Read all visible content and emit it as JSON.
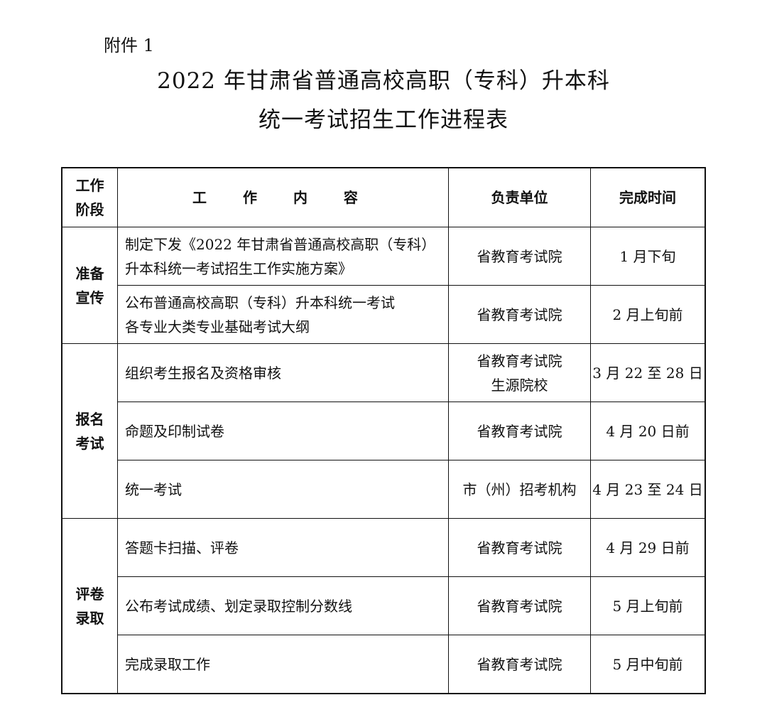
{
  "attachment_label": "附件 1",
  "title_line1": "2022 年甘肃省普通高校高职（专科）升本科",
  "title_line2": "统一考试招生工作进程表",
  "table": {
    "headers": [
      "工作阶段",
      "工 作 内 容",
      "负责单位",
      "完成时间"
    ],
    "header_stage_lines": [
      "工作",
      "阶段"
    ],
    "groups": [
      {
        "stage_lines": [
          "准备",
          "宣传"
        ],
        "rows": [
          {
            "content_lines": [
              "制定下发《2022 年甘肃省普通高校高职（专科）",
              "升本科统一考试招生工作实施方案》"
            ],
            "unit_lines": [
              "省教育考试院"
            ],
            "time": "1 月下旬"
          },
          {
            "content_lines": [
              "公布普通高校高职（专科）升本科统一考试",
              "各专业大类专业基础考试大纲"
            ],
            "unit_lines": [
              "省教育考试院"
            ],
            "time": "2 月上旬前"
          }
        ]
      },
      {
        "stage_lines": [
          "报名",
          "考试"
        ],
        "rows": [
          {
            "content_lines": [
              "组织考生报名及资格审核"
            ],
            "unit_lines": [
              "省教育考试院",
              "生源院校"
            ],
            "time": "3 月 22 至 28 日"
          },
          {
            "content_lines": [
              "命题及印制试卷"
            ],
            "unit_lines": [
              "省教育考试院"
            ],
            "time": "4 月 20 日前"
          },
          {
            "content_lines": [
              "统一考试"
            ],
            "unit_lines": [
              "市（州）招考机构"
            ],
            "time": "4 月 23 至 24 日"
          }
        ]
      },
      {
        "stage_lines": [
          "评卷",
          "录取"
        ],
        "rows": [
          {
            "content_lines": [
              "答题卡扫描、评卷"
            ],
            "unit_lines": [
              "省教育考试院"
            ],
            "time": "4 月 29 日前"
          },
          {
            "content_lines": [
              "公布考试成绩、划定录取控制分数线"
            ],
            "unit_lines": [
              "省教育考试院"
            ],
            "time": "5 月上旬前"
          },
          {
            "content_lines": [
              "完成录取工作"
            ],
            "unit_lines": [
              "省教育考试院"
            ],
            "time": "5 月中旬前"
          }
        ]
      }
    ]
  }
}
